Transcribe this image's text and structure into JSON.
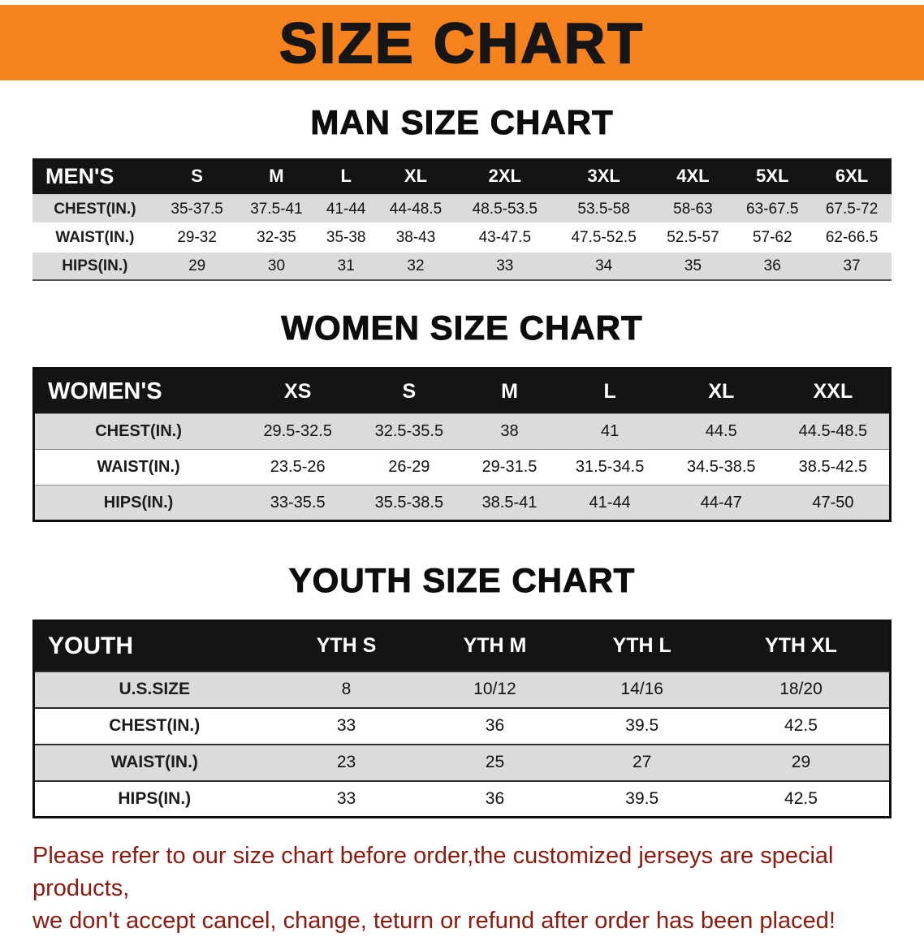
{
  "banner": {
    "title": "SIZE CHART"
  },
  "man": {
    "heading": "MAN SIZE CHART",
    "label": "MEN'S",
    "cols": [
      "S",
      "M",
      "L",
      "XL",
      "2XL",
      "3XL",
      "4XL",
      "5XL",
      "6XL"
    ],
    "rows": [
      {
        "label": "CHEST(IN.)",
        "v": [
          "35-37.5",
          "37.5-41",
          "41-44",
          "44-48.5",
          "48.5-53.5",
          "53.5-58",
          "58-63",
          "63-67.5",
          "67.5-72"
        ]
      },
      {
        "label": "WAIST(IN.)",
        "v": [
          "29-32",
          "32-35",
          "35-38",
          "38-43",
          "43-47.5",
          "47.5-52.5",
          "52.5-57",
          "57-62",
          "62-66.5"
        ]
      },
      {
        "label": "HIPS(IN.)",
        "v": [
          "29",
          "30",
          "31",
          "32",
          "33",
          "34",
          "35",
          "36",
          "37"
        ]
      }
    ]
  },
  "women": {
    "heading": "WOMEN SIZE CHART",
    "label": "WOMEN'S",
    "cols": [
      "XS",
      "S",
      "M",
      "L",
      "XL",
      "XXL"
    ],
    "rows": [
      {
        "label": "CHEST(IN.)",
        "v": [
          "29.5-32.5",
          "32.5-35.5",
          "38",
          "41",
          "44.5",
          "44.5-48.5"
        ]
      },
      {
        "label": "WAIST(IN.)",
        "v": [
          "23.5-26",
          "26-29",
          "29-31.5",
          "31.5-34.5",
          "34.5-38.5",
          "38.5-42.5"
        ]
      },
      {
        "label": "HIPS(IN.)",
        "v": [
          "33-35.5",
          "35.5-38.5",
          "38.5-41",
          "41-44",
          "44-47",
          "47-50"
        ]
      }
    ]
  },
  "youth": {
    "heading": "YOUTH SIZE CHART",
    "label": "YOUTH",
    "cols": [
      "YTH S",
      "YTH M",
      "YTH L",
      "YTH XL"
    ],
    "rows": [
      {
        "label": "U.S.SIZE",
        "v": [
          "8",
          "10/12",
          "14/16",
          "18/20"
        ]
      },
      {
        "label": "CHEST(IN.)",
        "v": [
          "33",
          "36",
          "39.5",
          "42.5"
        ]
      },
      {
        "label": "WAIST(IN.)",
        "v": [
          "23",
          "25",
          "27",
          "29"
        ]
      },
      {
        "label": "HIPS(IN.)",
        "v": [
          "33",
          "36",
          "39.5",
          "42.5"
        ]
      }
    ]
  },
  "footer": {
    "line1": "Please refer to our size chart before order,the customized jerseys are special products,",
    "line2": "we don't accept cancel, change, teturn or refund after order has been placed!"
  },
  "colors": {
    "banner_bg": "#F6831E",
    "header_row_bg": "#141414",
    "row_stripe": "#DBDBDB",
    "footer_text": "#8C1A0E"
  }
}
